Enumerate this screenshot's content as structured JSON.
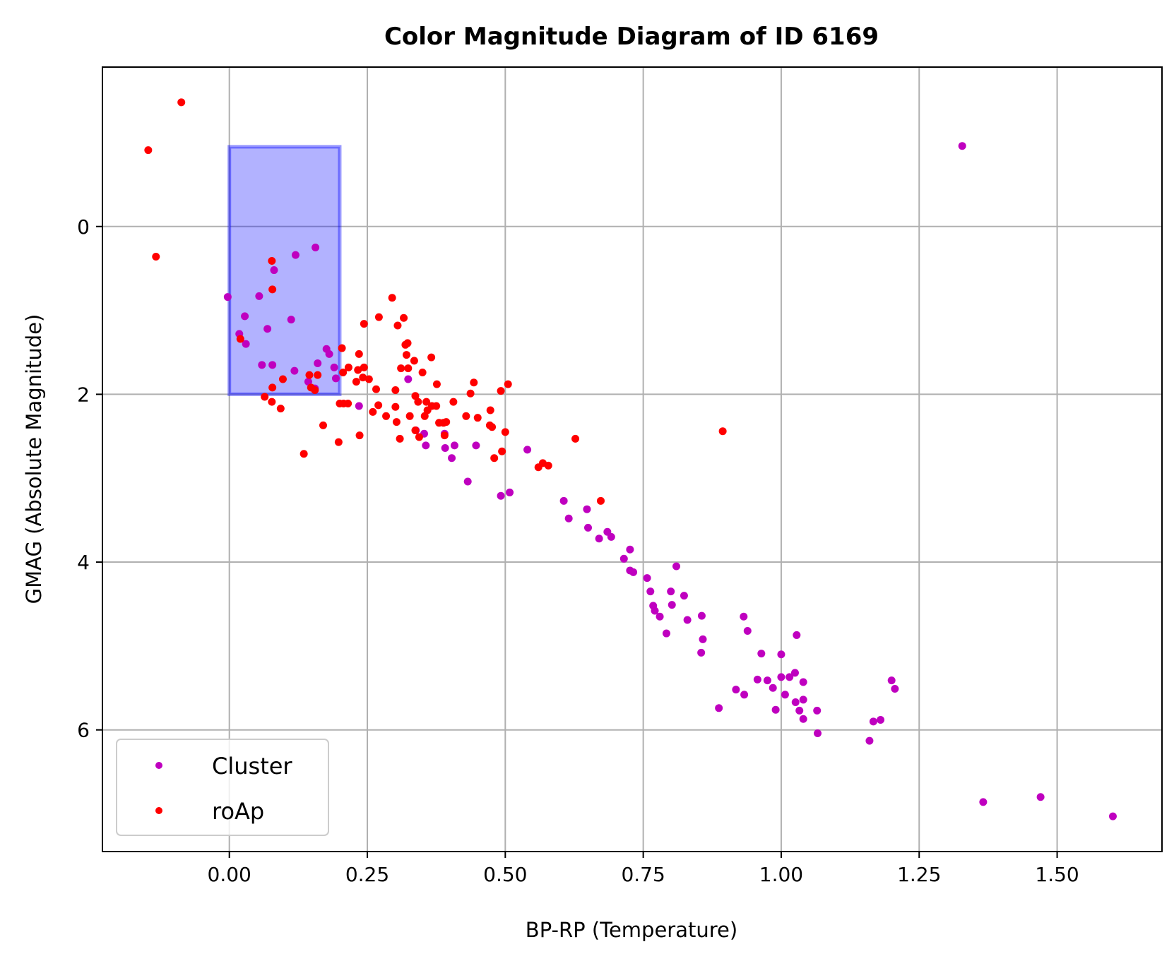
{
  "chart_data": {
    "type": "scatter",
    "title": "Color Magnitude Diagram of ID 6169",
    "xlabel": "BP-RP (Temperature)",
    "ylabel": "GMAG (Absolute Magnitude)",
    "xlim": [
      -0.23,
      1.69
    ],
    "ylim": [
      7.45,
      -1.9
    ],
    "y_inverted": true,
    "grid": true,
    "legend_position": "lower left",
    "x_ticks": [
      0.0,
      0.25,
      0.5,
      0.75,
      1.0,
      1.25,
      1.5
    ],
    "x_tick_labels": [
      "0.00",
      "0.25",
      "0.50",
      "0.75",
      "1.00",
      "1.25",
      "1.50"
    ],
    "y_ticks": [
      0,
      2,
      4,
      6
    ],
    "y_tick_labels": [
      "0",
      "2",
      "4",
      "6"
    ],
    "highlight_region": {
      "x": [
        0.0,
        0.2
      ],
      "y": [
        -0.95,
        2.0
      ],
      "color": "#0000ff",
      "opacity": 0.3
    },
    "series": [
      {
        "name": "Cluster",
        "color": "#bf00bf",
        "points": [
          [
            1.328,
            -0.96
          ],
          [
            0.156,
            0.25
          ],
          [
            0.12,
            0.34
          ],
          [
            0.081,
            0.52
          ],
          [
            -0.003,
            0.84
          ],
          [
            0.054,
            0.83
          ],
          [
            0.028,
            1.07
          ],
          [
            0.018,
            1.28
          ],
          [
            0.03,
            1.4
          ],
          [
            0.069,
            1.22
          ],
          [
            0.112,
            1.11
          ],
          [
            0.059,
            1.65
          ],
          [
            0.078,
            1.65
          ],
          [
            0.118,
            1.72
          ],
          [
            0.176,
            1.46
          ],
          [
            0.181,
            1.52
          ],
          [
            0.19,
            1.68
          ],
          [
            0.193,
            1.81
          ],
          [
            0.16,
            1.63
          ],
          [
            0.155,
            1.93
          ],
          [
            0.143,
            1.85
          ],
          [
            0.235,
            2.14
          ],
          [
            0.324,
            1.82
          ],
          [
            0.338,
            2.43
          ],
          [
            0.353,
            2.47
          ],
          [
            0.356,
            2.61
          ],
          [
            0.39,
            2.47
          ],
          [
            0.391,
            2.64
          ],
          [
            0.408,
            2.61
          ],
          [
            0.403,
            2.76
          ],
          [
            0.447,
            2.61
          ],
          [
            0.432,
            3.04
          ],
          [
            0.492,
            3.21
          ],
          [
            0.508,
            3.17
          ],
          [
            0.54,
            2.66
          ],
          [
            0.606,
            3.27
          ],
          [
            0.615,
            3.48
          ],
          [
            0.648,
            3.37
          ],
          [
            0.65,
            3.59
          ],
          [
            0.67,
            3.72
          ],
          [
            0.685,
            3.64
          ],
          [
            0.692,
            3.7
          ],
          [
            0.715,
            3.96
          ],
          [
            0.726,
            3.85
          ],
          [
            0.726,
            4.1
          ],
          [
            0.732,
            4.12
          ],
          [
            0.757,
            4.19
          ],
          [
            0.763,
            4.35
          ],
          [
            0.768,
            4.52
          ],
          [
            0.771,
            4.58
          ],
          [
            0.78,
            4.65
          ],
          [
            0.792,
            4.85
          ],
          [
            0.8,
            4.35
          ],
          [
            0.802,
            4.51
          ],
          [
            0.81,
            4.05
          ],
          [
            0.824,
            4.4
          ],
          [
            0.83,
            4.69
          ],
          [
            0.856,
            4.64
          ],
          [
            0.858,
            4.92
          ],
          [
            0.855,
            5.08
          ],
          [
            0.887,
            5.74
          ],
          [
            0.918,
            5.52
          ],
          [
            0.933,
            5.58
          ],
          [
            0.932,
            4.65
          ],
          [
            0.939,
            4.82
          ],
          [
            0.957,
            5.4
          ],
          [
            0.964,
            5.09
          ],
          [
            0.975,
            5.41
          ],
          [
            0.985,
            5.5
          ],
          [
            0.99,
            5.76
          ],
          [
            1.0,
            5.37
          ],
          [
            1.0,
            5.1
          ],
          [
            1.007,
            5.58
          ],
          [
            1.015,
            5.37
          ],
          [
            1.025,
            5.32
          ],
          [
            1.026,
            5.67
          ],
          [
            1.028,
            4.87
          ],
          [
            1.033,
            5.77
          ],
          [
            1.04,
            5.64
          ],
          [
            1.04,
            5.87
          ],
          [
            1.04,
            5.43
          ],
          [
            1.065,
            5.77
          ],
          [
            1.066,
            6.04
          ],
          [
            1.16,
            6.13
          ],
          [
            1.167,
            5.9
          ],
          [
            1.18,
            5.88
          ],
          [
            1.2,
            5.41
          ],
          [
            1.206,
            5.51
          ],
          [
            1.366,
            6.86
          ],
          [
            1.47,
            6.8
          ],
          [
            1.601,
            7.03
          ]
        ]
      },
      {
        "name": "roAp",
        "color": "#ff0000",
        "points": [
          [
            -0.087,
            -1.48
          ],
          [
            -0.147,
            -0.91
          ],
          [
            -0.133,
            0.36
          ],
          [
            0.077,
            0.41
          ],
          [
            0.078,
            0.75
          ],
          [
            0.02,
            1.34
          ],
          [
            0.064,
            2.03
          ],
          [
            0.078,
            1.92
          ],
          [
            0.077,
            2.09
          ],
          [
            0.093,
            2.17
          ],
          [
            0.097,
            1.82
          ],
          [
            0.135,
            2.71
          ],
          [
            0.145,
            1.77
          ],
          [
            0.148,
            1.92
          ],
          [
            0.155,
            1.95
          ],
          [
            0.16,
            1.77
          ],
          [
            0.17,
            2.37
          ],
          [
            0.198,
            2.57
          ],
          [
            0.2,
            2.11
          ],
          [
            0.207,
            2.11
          ],
          [
            0.215,
            2.11
          ],
          [
            0.204,
            1.45
          ],
          [
            0.206,
            1.74
          ],
          [
            0.216,
            1.68
          ],
          [
            0.23,
            1.85
          ],
          [
            0.233,
            1.71
          ],
          [
            0.236,
            2.49
          ],
          [
            0.235,
            1.52
          ],
          [
            0.244,
            1.16
          ],
          [
            0.244,
            1.68
          ],
          [
            0.242,
            1.8
          ],
          [
            0.253,
            1.82
          ],
          [
            0.26,
            2.21
          ],
          [
            0.266,
            1.94
          ],
          [
            0.27,
            2.13
          ],
          [
            0.271,
            1.08
          ],
          [
            0.284,
            2.26
          ],
          [
            0.295,
            0.85
          ],
          [
            0.301,
            1.95
          ],
          [
            0.301,
            2.15
          ],
          [
            0.303,
            2.33
          ],
          [
            0.305,
            1.18
          ],
          [
            0.309,
            2.53
          ],
          [
            0.311,
            1.69
          ],
          [
            0.316,
            1.09
          ],
          [
            0.319,
            1.41
          ],
          [
            0.321,
            1.53
          ],
          [
            0.323,
            1.39
          ],
          [
            0.324,
            1.69
          ],
          [
            0.327,
            2.26
          ],
          [
            0.335,
            1.6
          ],
          [
            0.337,
            2.02
          ],
          [
            0.337,
            2.43
          ],
          [
            0.342,
            2.09
          ],
          [
            0.344,
            2.51
          ],
          [
            0.35,
            1.74
          ],
          [
            0.354,
            2.26
          ],
          [
            0.357,
            2.09
          ],
          [
            0.359,
            2.19
          ],
          [
            0.366,
            1.56
          ],
          [
            0.367,
            2.14
          ],
          [
            0.375,
            2.14
          ],
          [
            0.376,
            1.88
          ],
          [
            0.38,
            2.34
          ],
          [
            0.388,
            2.34
          ],
          [
            0.39,
            2.49
          ],
          [
            0.393,
            2.33
          ],
          [
            0.406,
            2.09
          ],
          [
            0.429,
            2.26
          ],
          [
            0.437,
            1.99
          ],
          [
            0.443,
            1.86
          ],
          [
            0.45,
            2.28
          ],
          [
            0.472,
            2.37
          ],
          [
            0.473,
            2.19
          ],
          [
            0.476,
            2.39
          ],
          [
            0.48,
            2.76
          ],
          [
            0.492,
            1.96
          ],
          [
            0.494,
            2.68
          ],
          [
            0.5,
            2.45
          ],
          [
            0.505,
            1.88
          ],
          [
            0.56,
            2.87
          ],
          [
            0.568,
            2.82
          ],
          [
            0.578,
            2.85
          ],
          [
            0.627,
            2.53
          ],
          [
            0.673,
            3.27
          ],
          [
            0.894,
            2.44
          ]
        ]
      }
    ]
  }
}
